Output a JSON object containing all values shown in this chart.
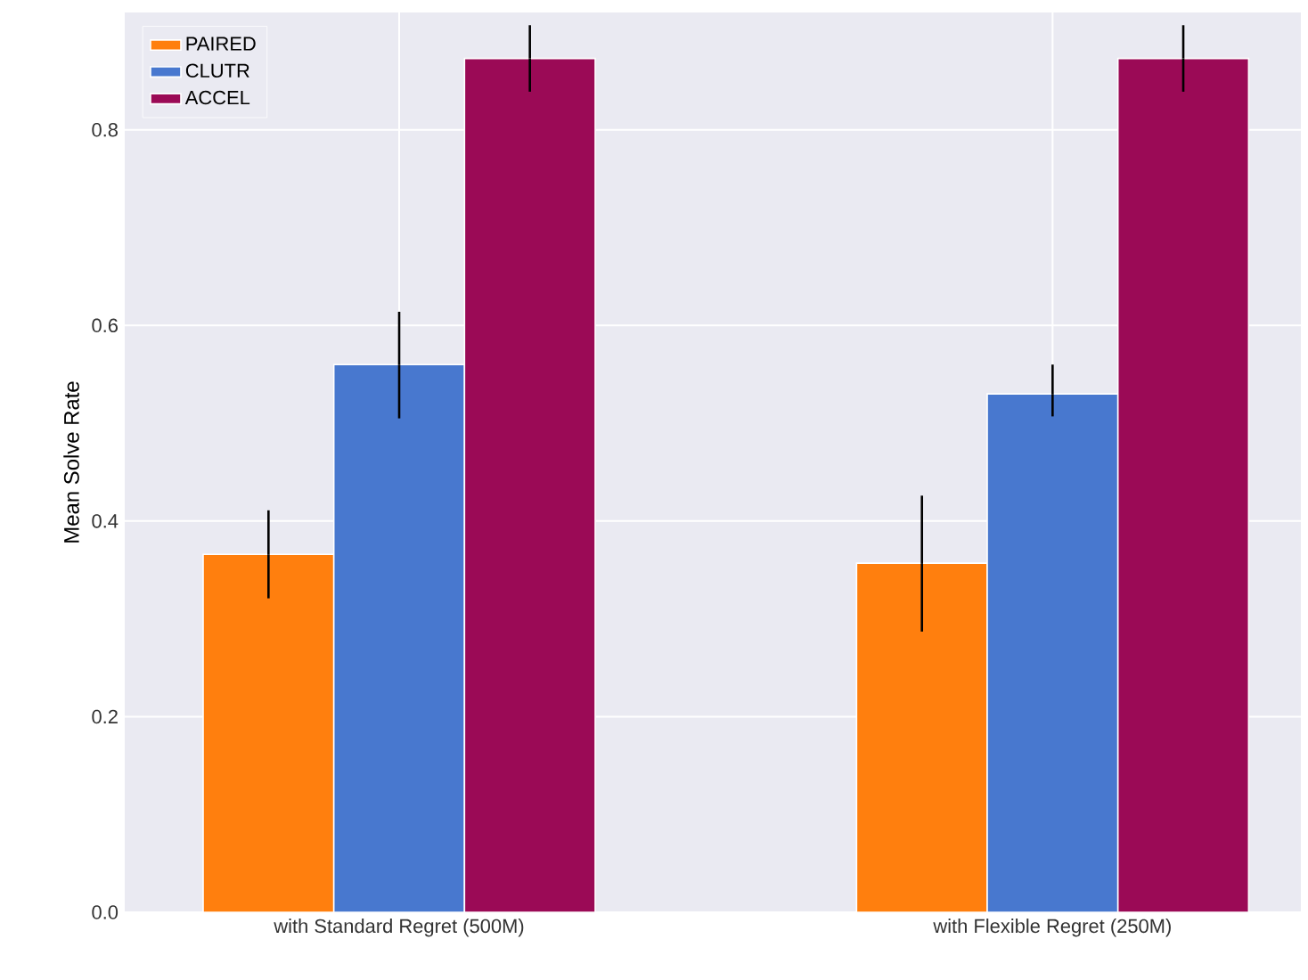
{
  "chart_data": {
    "type": "bar",
    "ylabel": "Mean Solve Rate",
    "categories": [
      "with Standard Regret (500M)",
      "with Flexible Regret (250M)"
    ],
    "series": [
      {
        "name": "PAIRED",
        "color": "#ff7f0e",
        "values": [
          0.366,
          0.357
        ],
        "errors": [
          [
            0.321,
            0.411
          ],
          [
            0.287,
            0.426
          ]
        ]
      },
      {
        "name": "CLUTR",
        "color": "#4878cf",
        "values": [
          0.56,
          0.53
        ],
        "errors": [
          [
            0.505,
            0.614
          ],
          [
            0.507,
            0.56
          ]
        ]
      },
      {
        "name": "ACCEL",
        "color": "#9b0a56",
        "values": [
          0.873,
          0.873
        ],
        "errors": [
          [
            0.839,
            0.907
          ],
          [
            0.839,
            0.907
          ]
        ]
      }
    ],
    "ylim": [
      0,
      0.92
    ],
    "yticks": [
      {
        "value": 0,
        "label": "0.0"
      },
      0.2,
      0.4,
      0.6,
      0.8
    ],
    "grid": true,
    "legend": "top left"
  }
}
